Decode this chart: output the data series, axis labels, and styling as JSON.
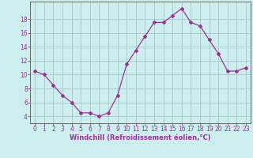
{
  "x": [
    0,
    1,
    2,
    3,
    4,
    5,
    6,
    7,
    8,
    9,
    10,
    11,
    12,
    13,
    14,
    15,
    16,
    17,
    18,
    19,
    20,
    21,
    22,
    23
  ],
  "y": [
    10.5,
    10.0,
    8.5,
    7.0,
    6.0,
    4.5,
    4.5,
    4.0,
    4.5,
    7.0,
    11.5,
    13.5,
    15.5,
    17.5,
    17.5,
    18.5,
    19.5,
    17.5,
    17.0,
    15.0,
    13.0,
    10.5,
    10.5,
    11.0
  ],
  "line_color": "#993399",
  "marker": "D",
  "marker_size": 2.0,
  "bg_color": "#cceeee",
  "grid_color": "#aacccc",
  "xlabel": "Windchill (Refroidissement éolien,°C)",
  "xlabel_color": "#993399",
  "tick_color": "#993399",
  "spine_color": "#666666",
  "xlim": [
    -0.5,
    23.5
  ],
  "ylim": [
    3,
    20.5
  ],
  "yticks": [
    4,
    6,
    8,
    10,
    12,
    14,
    16,
    18
  ],
  "xticks": [
    0,
    1,
    2,
    3,
    4,
    5,
    6,
    7,
    8,
    9,
    10,
    11,
    12,
    13,
    14,
    15,
    16,
    17,
    18,
    19,
    20,
    21,
    22,
    23
  ],
  "xlabel_fontsize": 6.0,
  "tick_fontsize": 5.5
}
